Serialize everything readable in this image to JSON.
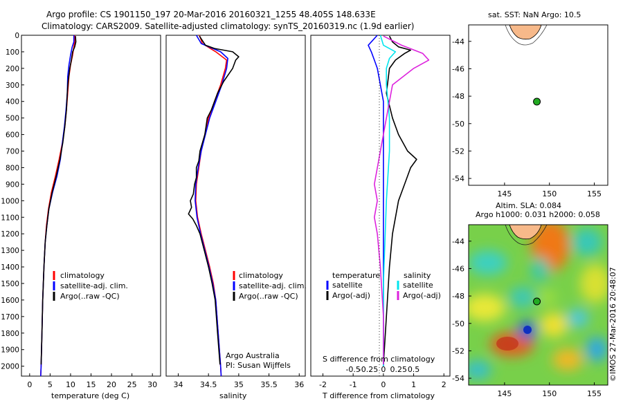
{
  "header": {
    "line1": "Argo profile: CS 1901150_197 20-Mar-2016 20160321_1255 48.405S 148.633E",
    "line2": "Climatology: CARS2009. Satellite-adjusted climatology: synTS_20160319.nc (1.9d earlier)"
  },
  "colors": {
    "climatology": "#ff0000",
    "satellite": "#0000ff",
    "argo": "#000000",
    "sal_satellite": "#00e5ee",
    "sal_argo": "#dd22dd",
    "land": "#f7b98a",
    "float": "#22aa22"
  },
  "chart_data": [
    {
      "type": "line",
      "id": "temperature",
      "xlabel": "temperature (deg C)",
      "xlim": [
        -2,
        32
      ],
      "ylim": [
        2060,
        0
      ],
      "xticks": [
        0,
        5,
        10,
        15,
        20,
        25,
        30
      ],
      "yticks": [
        0,
        100,
        200,
        300,
        400,
        500,
        600,
        700,
        800,
        900,
        1000,
        1100,
        1200,
        1300,
        1400,
        1500,
        1600,
        1700,
        1800,
        1900,
        2000
      ],
      "legend": [
        "climatology",
        "satellite-adj. clim.",
        "Argo(..raw -QC)"
      ],
      "series": [
        {
          "name": "climatology",
          "color": "#ff0000",
          "points": [
            [
              11,
              0
            ],
            [
              11,
              40
            ],
            [
              10.8,
              70
            ],
            [
              10.5,
              120
            ],
            [
              10,
              180
            ],
            [
              9.6,
              250
            ],
            [
              9.3,
              350
            ],
            [
              9,
              450
            ],
            [
              8.6,
              550
            ],
            [
              8,
              650
            ],
            [
              7.2,
              750
            ],
            [
              6.3,
              850
            ],
            [
              5.3,
              950
            ],
            [
              4.6,
              1050
            ],
            [
              4.1,
              1150
            ],
            [
              3.8,
              1250
            ],
            [
              3.5,
              1400
            ],
            [
              3.2,
              1600
            ],
            [
              3,
              1800
            ],
            [
              2.8,
              2000
            ],
            [
              2.7,
              2060
            ]
          ]
        },
        {
          "name": "satellite-adj. clim.",
          "color": "#0000ff",
          "points": [
            [
              10.8,
              0
            ],
            [
              10.8,
              40
            ],
            [
              10.4,
              70
            ],
            [
              10,
              120
            ],
            [
              9.6,
              180
            ],
            [
              9.3,
              250
            ],
            [
              9.2,
              350
            ],
            [
              8.9,
              450
            ],
            [
              8.5,
              550
            ],
            [
              8,
              650
            ],
            [
              7.5,
              750
            ],
            [
              6.7,
              850
            ],
            [
              5.6,
              950
            ],
            [
              4.7,
              1050
            ],
            [
              4.2,
              1150
            ],
            [
              3.8,
              1250
            ],
            [
              3.5,
              1400
            ],
            [
              3.2,
              1600
            ],
            [
              3,
              1800
            ],
            [
              2.8,
              2000
            ],
            [
              2.7,
              2060
            ]
          ]
        },
        {
          "name": "Argo(..raw -QC)",
          "color": "#000000",
          "points": [
            [
              11.2,
              5
            ],
            [
              11.3,
              40
            ],
            [
              11,
              70
            ],
            [
              10.5,
              100
            ],
            [
              10.2,
              150
            ],
            [
              9.8,
              200
            ],
            [
              9.4,
              280
            ],
            [
              9.2,
              350
            ],
            [
              9,
              450
            ],
            [
              8.6,
              550
            ],
            [
              8.1,
              650
            ],
            [
              7.4,
              750
            ],
            [
              6.5,
              850
            ],
            [
              5.5,
              950
            ],
            [
              4.7,
              1050
            ],
            [
              4.2,
              1150
            ],
            [
              3.8,
              1250
            ],
            [
              3.5,
              1400
            ],
            [
              3.2,
              1600
            ],
            [
              3,
              1800
            ],
            [
              2.8,
              1990
            ]
          ]
        }
      ]
    },
    {
      "type": "line",
      "id": "salinity",
      "xlabel": "salinity",
      "xlim": [
        33.8,
        36.1
      ],
      "ylim": [
        2060,
        0
      ],
      "xticks": [
        34,
        34.5,
        35,
        35.5,
        36
      ],
      "legend": [
        "climatology",
        "satellite-adj. clim.",
        "Argo(..raw -QC)"
      ],
      "annotation": [
        "Argo Australia",
        "PI: Susan Wijffels"
      ],
      "series": [
        {
          "name": "climatology",
          "color": "#ff0000",
          "points": [
            [
              34.35,
              0
            ],
            [
              34.4,
              50
            ],
            [
              34.62,
              100
            ],
            [
              34.8,
              150
            ],
            [
              34.78,
              200
            ],
            [
              34.7,
              300
            ],
            [
              34.6,
              400
            ],
            [
              34.5,
              500
            ],
            [
              34.44,
              600
            ],
            [
              34.38,
              700
            ],
            [
              34.34,
              800
            ],
            [
              34.3,
              900
            ],
            [
              34.29,
              1000
            ],
            [
              34.32,
              1100
            ],
            [
              34.38,
              1200
            ],
            [
              34.45,
              1300
            ],
            [
              34.52,
              1400
            ],
            [
              34.58,
              1500
            ],
            [
              34.62,
              1600
            ],
            [
              34.66,
              1800
            ],
            [
              34.7,
              2000
            ],
            [
              34.71,
              2060
            ]
          ]
        },
        {
          "name": "satellite-adj. clim.",
          "color": "#0000ff",
          "points": [
            [
              34.3,
              0
            ],
            [
              34.38,
              50
            ],
            [
              34.7,
              100
            ],
            [
              34.82,
              140
            ],
            [
              34.8,
              200
            ],
            [
              34.72,
              300
            ],
            [
              34.62,
              400
            ],
            [
              34.52,
              500
            ],
            [
              34.45,
              600
            ],
            [
              34.38,
              700
            ],
            [
              34.33,
              800
            ],
            [
              34.29,
              900
            ],
            [
              34.28,
              1000
            ],
            [
              34.31,
              1100
            ],
            [
              34.37,
              1200
            ],
            [
              34.44,
              1300
            ],
            [
              34.51,
              1400
            ],
            [
              34.57,
              1500
            ],
            [
              34.62,
              1600
            ],
            [
              34.66,
              1800
            ],
            [
              34.7,
              2000
            ],
            [
              34.71,
              2060
            ]
          ]
        },
        {
          "name": "Argo(..raw -QC)",
          "color": "#000000",
          "points": [
            [
              34.35,
              5
            ],
            [
              34.45,
              60
            ],
            [
              34.6,
              80
            ],
            [
              34.9,
              100
            ],
            [
              35.0,
              130
            ],
            [
              34.95,
              150
            ],
            [
              34.9,
              200
            ],
            [
              34.75,
              280
            ],
            [
              34.65,
              350
            ],
            [
              34.6,
              400
            ],
            [
              34.55,
              450
            ],
            [
              34.48,
              500
            ],
            [
              34.46,
              550
            ],
            [
              34.44,
              600
            ],
            [
              34.4,
              650
            ],
            [
              34.36,
              700
            ],
            [
              34.34,
              760
            ],
            [
              34.3,
              800
            ],
            [
              34.3,
              860
            ],
            [
              34.27,
              900
            ],
            [
              34.25,
              960
            ],
            [
              34.2,
              1000
            ],
            [
              34.22,
              1040
            ],
            [
              34.17,
              1080
            ],
            [
              34.24,
              1110
            ],
            [
              34.3,
              1150
            ],
            [
              34.36,
              1200
            ],
            [
              34.43,
              1300
            ],
            [
              34.5,
              1400
            ],
            [
              34.56,
              1500
            ],
            [
              34.61,
              1600
            ],
            [
              34.65,
              1800
            ],
            [
              34.69,
              1990
            ]
          ]
        }
      ]
    },
    {
      "type": "line",
      "id": "difference",
      "xlabel": "T difference from climatology",
      "xlabel_top": "S difference from climatology",
      "xlim": [
        -2.4,
        2.2
      ],
      "ylim": [
        2060,
        0
      ],
      "xticks": [
        -2,
        -1,
        0,
        1,
        2
      ],
      "xticks_top": [
        "-0.5",
        "-0.25",
        "0",
        "0.25",
        "0.5"
      ],
      "legend_temperature": {
        "title": "temperature",
        "items": [
          "satellite",
          "Argo(-adj)"
        ]
      },
      "legend_salinity": {
        "title": "salinity",
        "items": [
          "satellite",
          "Argo(-adj)"
        ]
      },
      "series": [
        {
          "name": "temperature satellite",
          "color": "#0000ff",
          "points": [
            [
              -0.2,
              0
            ],
            [
              -0.5,
              60
            ],
            [
              -0.4,
              100
            ],
            [
              -0.3,
              150
            ],
            [
              -0.2,
              200
            ],
            [
              -0.1,
              300
            ],
            [
              0,
              400
            ],
            [
              0,
              600
            ],
            [
              0,
              1000
            ],
            [
              0,
              1500
            ],
            [
              0,
              2000
            ]
          ]
        },
        {
          "name": "temperature Argo(-adj)",
          "color": "#000000",
          "points": [
            [
              0.2,
              5
            ],
            [
              0.3,
              40
            ],
            [
              0.5,
              70
            ],
            [
              0.9,
              90
            ],
            [
              0.7,
              110
            ],
            [
              0.4,
              150
            ],
            [
              0.2,
              200
            ],
            [
              0.1,
              350
            ],
            [
              0.3,
              500
            ],
            [
              0.5,
              600
            ],
            [
              0.8,
              700
            ],
            [
              1.1,
              750
            ],
            [
              0.9,
              800
            ],
            [
              0.7,
              900
            ],
            [
              0.5,
              1000
            ],
            [
              0.3,
              1200
            ],
            [
              0.2,
              1400
            ],
            [
              0.1,
              1700
            ],
            [
              0,
              1990
            ]
          ]
        },
        {
          "name": "salinity satellite",
          "color": "#00e5ee",
          "points": [
            [
              -0.1,
              0
            ],
            [
              0,
              60
            ],
            [
              0.4,
              100
            ],
            [
              0.2,
              140
            ],
            [
              0.1,
              200
            ],
            [
              0.1,
              300
            ],
            [
              0.2,
              500
            ],
            [
              0.2,
              700
            ],
            [
              0.1,
              1000
            ],
            [
              0,
              1500
            ],
            [
              0,
              2000
            ]
          ]
        },
        {
          "name": "salinity Argo(-adj)",
          "color": "#dd22dd",
          "points": [
            [
              0,
              5
            ],
            [
              0.6,
              60
            ],
            [
              1.3,
              110
            ],
            [
              1.5,
              150
            ],
            [
              1.0,
              200
            ],
            [
              0.3,
              300
            ],
            [
              0.1,
              500
            ],
            [
              -0.1,
              700
            ],
            [
              -0.3,
              900
            ],
            [
              -0.2,
              1000
            ],
            [
              -0.3,
              1100
            ],
            [
              -0.2,
              1200
            ],
            [
              -0.1,
              1400
            ],
            [
              0,
              1700
            ],
            [
              0,
              1990
            ]
          ]
        }
      ]
    },
    {
      "type": "scatter",
      "id": "sst-map",
      "title": "sat. SST: NaN Argo: 10.5",
      "xlim": [
        141,
        156.5
      ],
      "ylim": [
        -54.5,
        -42.8
      ],
      "xticks": [
        145,
        150,
        155
      ],
      "yticks": [
        -44,
        -46,
        -48,
        -50,
        -52,
        -54
      ],
      "ytick_labels": [
        "-44",
        "-46",
        "-48",
        "-50",
        "-52",
        "-54"
      ],
      "float_position": [
        148.6,
        -48.4
      ]
    },
    {
      "type": "heatmap",
      "id": "sla-map",
      "title_line1": "Altim. SLA: 0.084",
      "title_line2": "Argo h1000: 0.031 h2000: 0.058",
      "xlim": [
        141,
        156.5
      ],
      "ylim": [
        -54.5,
        -42.8
      ],
      "xticks": [
        145,
        150,
        155
      ],
      "yticks": [
        -44,
        -46,
        -48,
        -50,
        -52,
        -54
      ],
      "ytick_labels": [
        "-44",
        "-46",
        "-48",
        "-50",
        "-52",
        "-54"
      ],
      "float_position": [
        148.6,
        -48.4
      ],
      "credit": "©IMOS 27-Mar-2016 20:48:07"
    }
  ]
}
